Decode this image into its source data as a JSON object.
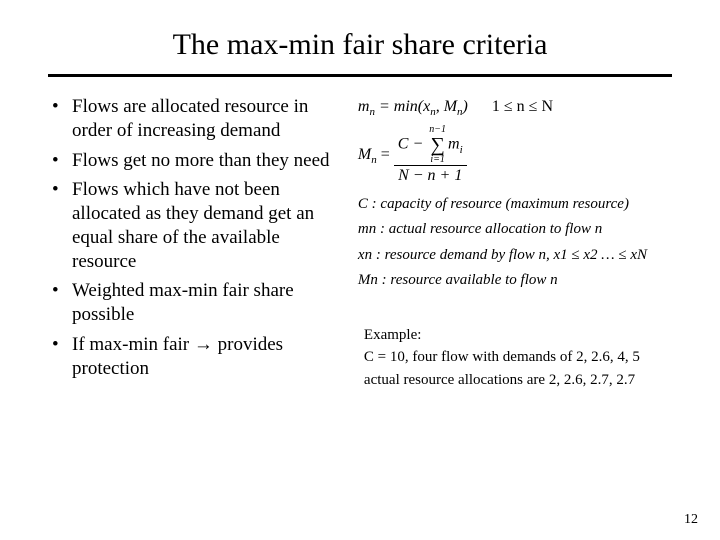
{
  "title": "The max-min fair share criteria",
  "bullets": [
    "Flows are allocated resource in order of increasing demand",
    "Flows get no more than they need",
    "Flows which have not been allocated as they demand get an equal share of the available resource",
    "Weighted max-min fair share possible",
    "If max-min fair → provides protection"
  ],
  "equations": {
    "mn_def_lhs": "m",
    "mn_def_sub": "n",
    "mn_def_rhs_a": " = min(x",
    "mn_def_rhs_b": ", M",
    "mn_def_rhs_c": ")",
    "cond": "1 ≤ n ≤ N",
    "Mn_lhs": "M",
    "Mn_lhs_sub": "n",
    "frac_num_a": "C − ",
    "sum_top": "n−1",
    "sum_bot": "i=1",
    "frac_num_b": "m",
    "frac_num_b_sub": "i",
    "frac_den_a": "N − n + 1"
  },
  "defs": {
    "C": "C : capacity of resource (maximum resource)",
    "mn_a": "m",
    "mn_sub": "n",
    "mn_b": " : actual resource allocation to flow n",
    "xn_a": "x",
    "xn_sub": "n",
    "xn_b": " : resource demand by flow n, x",
    "xn_sub1": "1",
    "xn_c": " ≤ x",
    "xn_sub2": "2",
    "xn_d": " … ≤ x",
    "xn_subN": "N",
    "Mn_a": "M",
    "Mn_sub": "n",
    "Mn_b": " : resource available to flow n"
  },
  "example": {
    "l1": "Example:",
    "l2": "C = 10, four flow with demands of 2, 2.6, 4, 5",
    "l3": "actual resource allocations are 2, 2.6, 2.7, 2.7"
  },
  "pagenum": "12"
}
